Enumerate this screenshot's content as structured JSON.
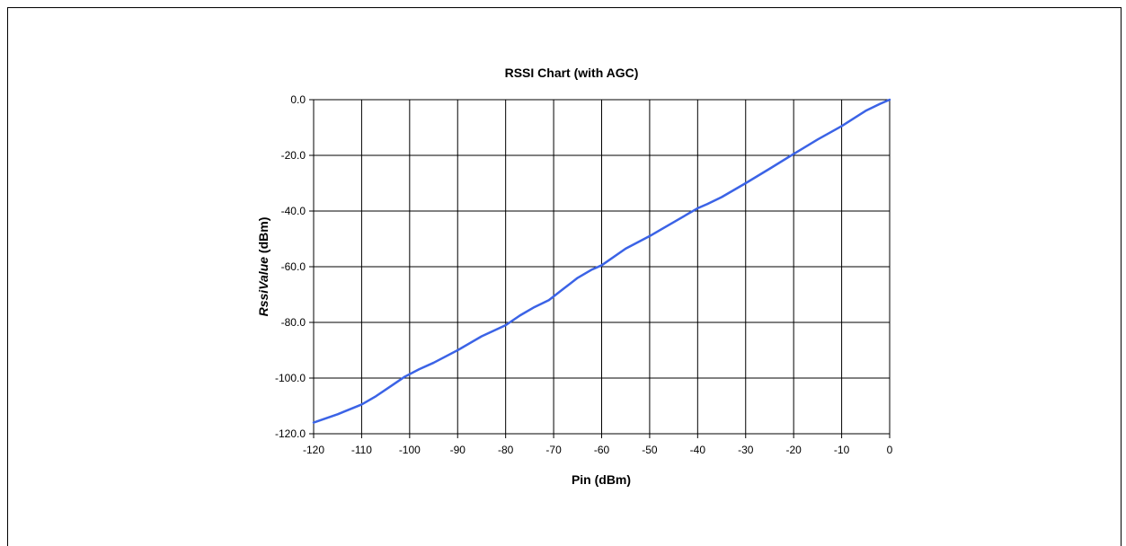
{
  "chart_data": {
    "type": "line",
    "title": "RSSI Chart (with AGC)",
    "xlabel": "Pin (dBm)",
    "ylabel_italic": "RssiValue",
    "ylabel_rest": " (dBm)",
    "xlim": [
      -120,
      0
    ],
    "ylim": [
      -120,
      0
    ],
    "x_ticks": [
      "-120",
      "-110",
      "-100",
      "-90",
      "-80",
      "-70",
      "-60",
      "-50",
      "-40",
      "-30",
      "-20",
      "-10",
      "0"
    ],
    "y_ticks": [
      "0.0",
      "-20.0",
      "-40.0",
      "-60.0",
      "-80.0",
      "-100.0",
      "-120.0"
    ],
    "grid": true,
    "line_color": "#3b63e6",
    "series": [
      {
        "x": [
          -120,
          -115,
          -110,
          -107,
          -104,
          -101,
          -98,
          -95,
          -90,
          -85,
          -80,
          -77,
          -74,
          -71,
          -68,
          -65,
          -62,
          -60,
          -55,
          -50,
          -45,
          -40,
          -38,
          -35,
          -30,
          -25,
          -20,
          -15,
          -10,
          -5,
          -2,
          0
        ],
        "y": [
          -116,
          -113,
          -109.5,
          -106.5,
          -103,
          -99.5,
          -96.8,
          -94.5,
          -90,
          -85,
          -81,
          -77.5,
          -74.5,
          -72,
          -68,
          -64,
          -61,
          -59.5,
          -53.5,
          -49,
          -44,
          -39,
          -37.5,
          -35,
          -30,
          -24.8,
          -19.5,
          -14.3,
          -9.5,
          -4,
          -1.5,
          0
        ]
      }
    ]
  }
}
